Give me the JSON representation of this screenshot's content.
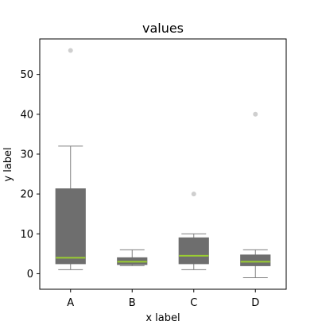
{
  "chart_data": {
    "type": "box",
    "title": "values",
    "xlabel": "x label",
    "ylabel": "y label",
    "categories": [
      "A",
      "B",
      "C",
      "D"
    ],
    "boxes": [
      {
        "category": "A",
        "whisker_low": 1,
        "q1": 2.5,
        "median": 4,
        "q3": 21.3,
        "whisker_high": 32,
        "outliers": [
          56
        ]
      },
      {
        "category": "B",
        "whisker_low": 2,
        "q1": 2.3,
        "median": 3,
        "q3": 4,
        "whisker_high": 6,
        "outliers": []
      },
      {
        "category": "C",
        "whisker_low": 1,
        "q1": 2.5,
        "median": 4.5,
        "q3": 9,
        "whisker_high": 10,
        "outliers": [
          20
        ]
      },
      {
        "category": "D",
        "whisker_low": -1,
        "q1": 2,
        "median": 3,
        "q3": 4.7,
        "whisker_high": 6,
        "outliers": [
          40
        ]
      }
    ],
    "ylim": [
      -3.9,
      58.9
    ],
    "yticks": [
      0,
      10,
      20,
      30,
      40,
      50
    ],
    "grid": false,
    "colors": {
      "box_fill": "#6e6e6e",
      "median": "#9acd32",
      "whisker": "#7f7f7f",
      "outlier": "#cfcfcf",
      "axes": "#000000"
    }
  }
}
